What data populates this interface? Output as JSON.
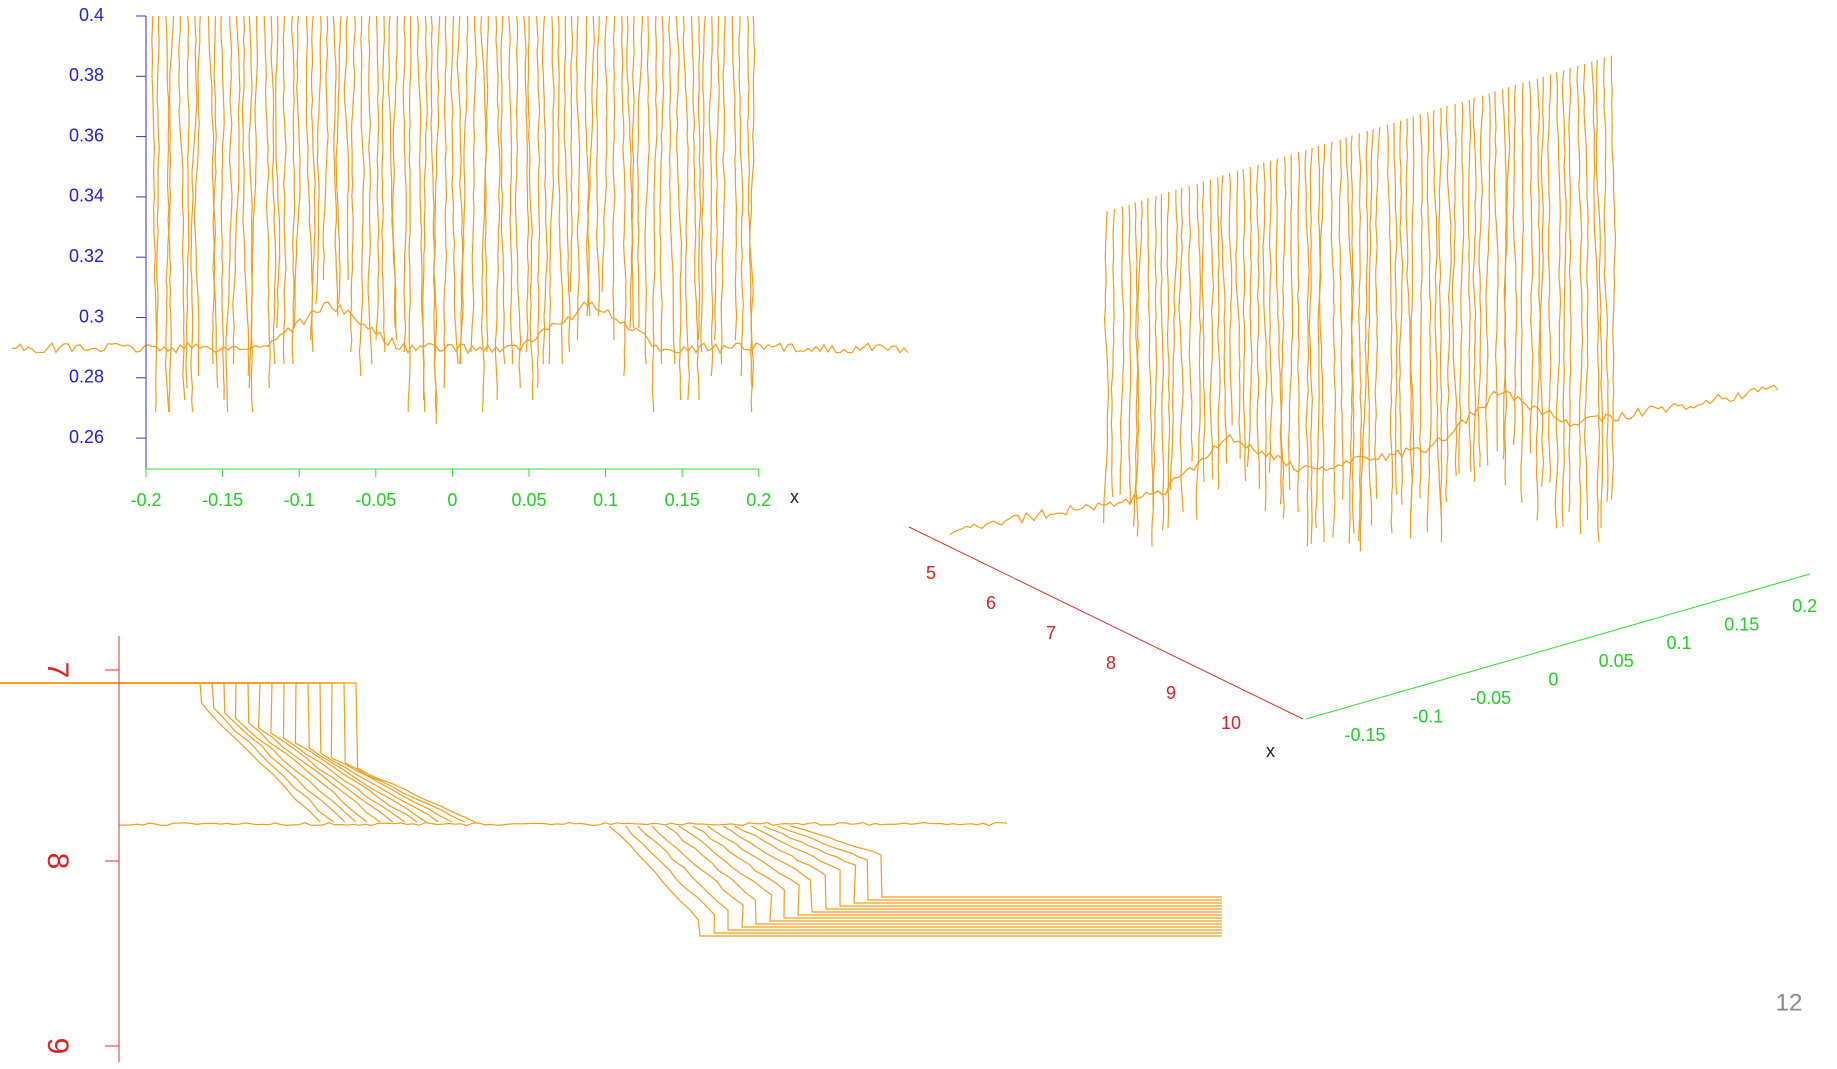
{
  "panels": [
    {
      "y_ticks": [
        "0.4",
        "0.38",
        "0.36",
        "0.34",
        "0.32",
        "0.3",
        "0.28",
        "0.26"
      ],
      "x_ticks": [
        "-0.2",
        "-0.15",
        "-0.1",
        "-0.05",
        "0",
        "0.05",
        "0.1",
        "0.15",
        "0.2"
      ],
      "x_axis_label": "x"
    },
    {
      "x_ticks": [
        "5",
        "6",
        "7",
        "8",
        "9",
        "10"
      ],
      "y_ticks": [
        "-0.15",
        "-0.1",
        "-0.05",
        "0",
        "0.05",
        "0.1",
        "0.15",
        "0.2"
      ],
      "x_axis_label": "x"
    },
    {
      "y_ticks": [
        "7",
        "8",
        "9"
      ]
    }
  ],
  "page_number": "12"
}
